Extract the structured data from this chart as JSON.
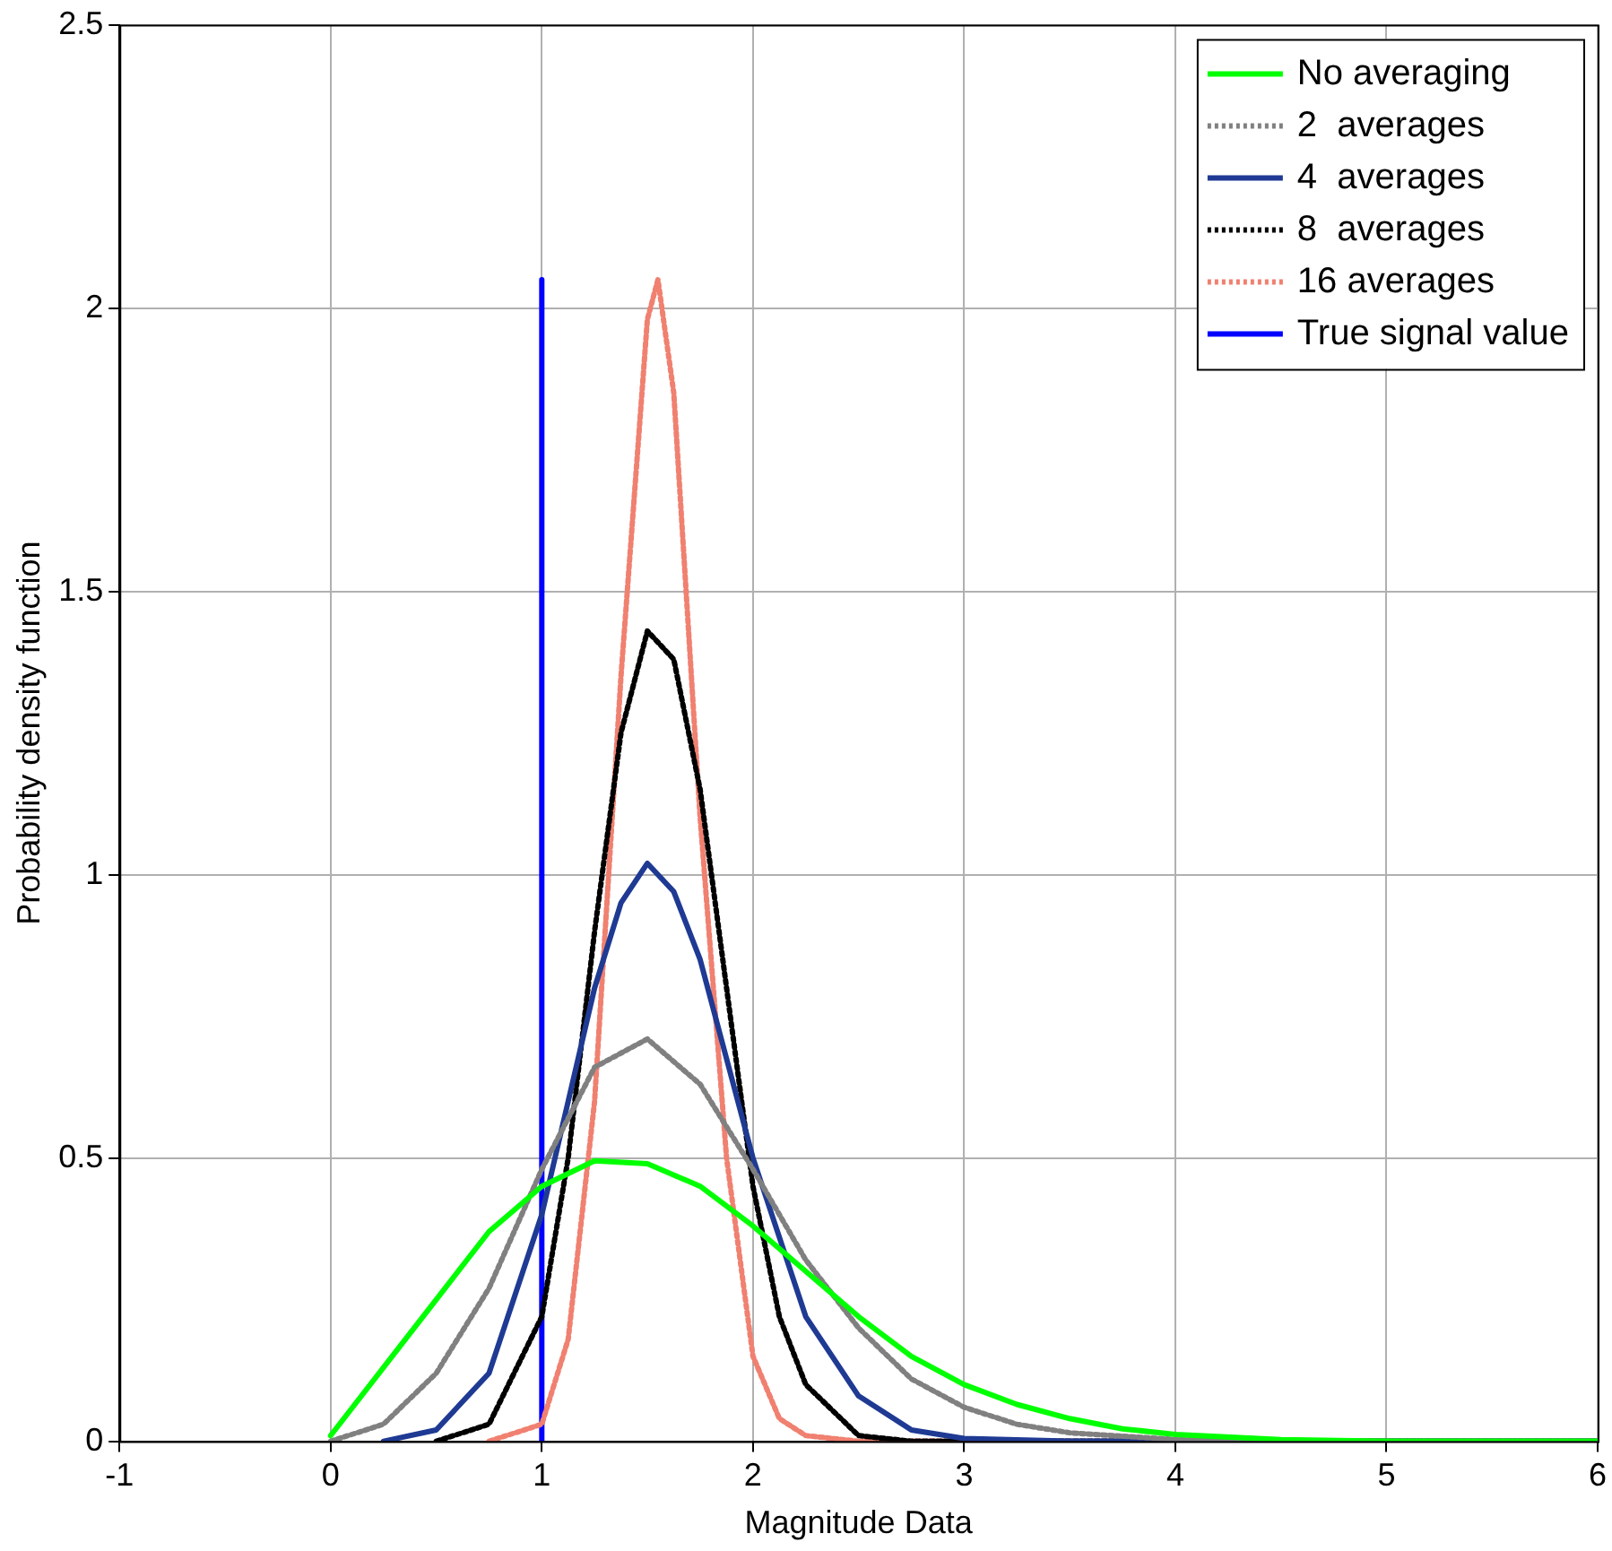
{
  "chart_data": {
    "type": "line",
    "xlabel": "Magnitude Data",
    "ylabel": "Probability density function",
    "xlim": [
      -1,
      6
    ],
    "xticks": [
      -1,
      0,
      1,
      2,
      3,
      4,
      5,
      6
    ],
    "ylim": [
      0,
      2.5
    ],
    "yticks": [
      0,
      0.5,
      1,
      1.5,
      2,
      2.5
    ],
    "grid": true,
    "legend": "top right",
    "marker": "none",
    "series": [
      {
        "name": "No averaging",
        "color": "#00ff00",
        "line_style": "solid",
        "x": [
          0,
          0.25,
          0.5,
          0.75,
          1,
          1.25,
          1.5,
          1.75,
          2,
          2.25,
          2.5,
          2.75,
          3,
          3.25,
          3.5,
          3.75,
          4,
          4.5,
          5,
          6
        ],
        "values": [
          0.01,
          0.13,
          0.25,
          0.37,
          0.45,
          0.495,
          0.49,
          0.45,
          0.38,
          0.3,
          0.22,
          0.15,
          0.1,
          0.065,
          0.04,
          0.022,
          0.012,
          0.003,
          0,
          0
        ]
      },
      {
        "name": "2  averages",
        "color": "#808080",
        "line_style": "dotted",
        "x": [
          0,
          0.25,
          0.5,
          0.75,
          1,
          1.25,
          1.5,
          1.75,
          2,
          2.25,
          2.5,
          2.75,
          3,
          3.25,
          3.5,
          4,
          4.5,
          6
        ],
        "values": [
          0,
          0.03,
          0.12,
          0.27,
          0.48,
          0.66,
          0.71,
          0.63,
          0.48,
          0.32,
          0.2,
          0.11,
          0.06,
          0.03,
          0.015,
          0.003,
          0,
          0
        ]
      },
      {
        "name": "4  averages",
        "color": "#1f3a93",
        "line_style": "solid",
        "x": [
          0.25,
          0.5,
          0.75,
          1,
          1.125,
          1.25,
          1.375,
          1.5,
          1.625,
          1.75,
          2,
          2.25,
          2.5,
          2.75,
          3,
          3.5,
          6
        ],
        "values": [
          0,
          0.02,
          0.12,
          0.4,
          0.6,
          0.8,
          0.95,
          1.02,
          0.97,
          0.85,
          0.5,
          0.22,
          0.08,
          0.02,
          0.005,
          0,
          0
        ]
      },
      {
        "name": "8  averages",
        "color": "#000000",
        "line_style": "dotted",
        "x": [
          0.5,
          0.75,
          1,
          1.125,
          1.25,
          1.375,
          1.5,
          1.625,
          1.75,
          1.875,
          2,
          2.125,
          2.25,
          2.5,
          2.75,
          6
        ],
        "values": [
          0,
          0.03,
          0.22,
          0.5,
          0.9,
          1.25,
          1.43,
          1.38,
          1.15,
          0.8,
          0.45,
          0.22,
          0.1,
          0.01,
          0,
          0
        ]
      },
      {
        "name": "16 averages",
        "color": "#f08070",
        "line_style": "dotted",
        "x": [
          0.75,
          1,
          1.125,
          1.25,
          1.375,
          1.5,
          1.55,
          1.625,
          1.75,
          1.875,
          2,
          2.125,
          2.25,
          2.5,
          6
        ],
        "values": [
          0,
          0.03,
          0.18,
          0.6,
          1.35,
          1.98,
          2.05,
          1.85,
          1.1,
          0.5,
          0.15,
          0.04,
          0.01,
          0,
          0
        ]
      },
      {
        "name": "True signal value",
        "color": "#0000ff",
        "line_style": "solid",
        "x": [
          1,
          1
        ],
        "values": [
          0,
          2.05
        ]
      }
    ]
  }
}
